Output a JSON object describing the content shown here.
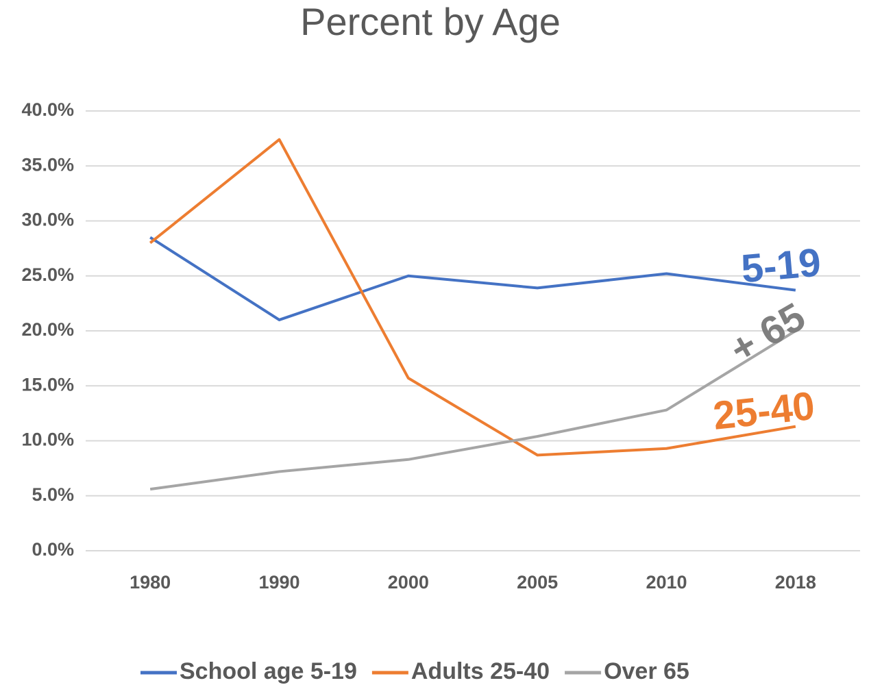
{
  "chart_data": {
    "type": "line",
    "title": "Percent by Age",
    "categories": [
      "1980",
      "1990",
      "2000",
      "2005",
      "2010",
      "2018"
    ],
    "series": [
      {
        "name": "School age 5-19",
        "color": "#4472c4",
        "values": [
          28.5,
          21.0,
          25.0,
          23.9,
          25.2,
          23.7
        ]
      },
      {
        "name": "Adults 25-40",
        "color": "#ed7d31",
        "values": [
          28.0,
          37.4,
          15.7,
          8.7,
          9.3,
          11.3
        ]
      },
      {
        "name": "Over 65",
        "color": "#a5a5a5",
        "values": [
          5.6,
          7.2,
          8.3,
          10.4,
          12.8,
          20.0
        ]
      }
    ],
    "ylim": [
      0,
      40
    ],
    "yticks": [
      {
        "value": 0,
        "label": "0.0%"
      },
      {
        "value": 5,
        "label": "5.0%"
      },
      {
        "value": 10,
        "label": "10.0%"
      },
      {
        "value": 15,
        "label": "15.0%"
      },
      {
        "value": 20,
        "label": "20.0%"
      },
      {
        "value": 25,
        "label": "25.0%"
      },
      {
        "value": 30,
        "label": "30.0%"
      },
      {
        "value": 35,
        "label": "35.0%"
      },
      {
        "value": 40,
        "label": "40.0%"
      }
    ],
    "grid": true,
    "legend": "bottom",
    "annotations": [
      {
        "text": "5-19",
        "color": "#4472c4"
      },
      {
        "text": "+ 65",
        "color": "#7f7f7f"
      },
      {
        "text": "25-40",
        "color": "#ed7d31"
      }
    ]
  }
}
